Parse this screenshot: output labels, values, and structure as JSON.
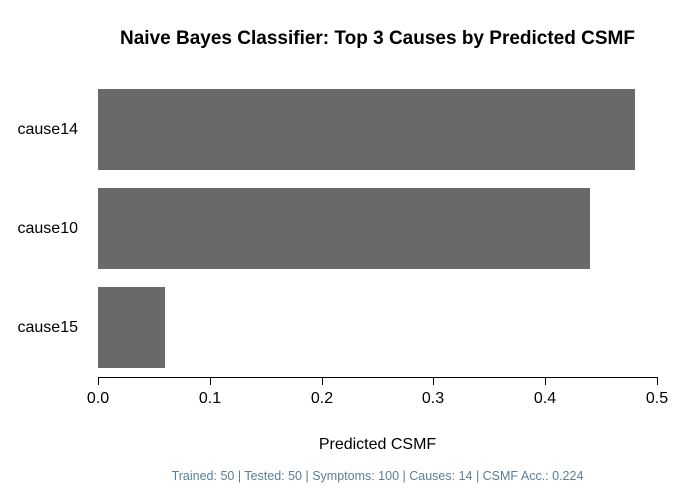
{
  "title": "Naive Bayes Classifier: Top 3 Causes by Predicted CSMF",
  "footer": "Trained: 50 | Tested: 50 | Symptoms: 100 | Causes: 14 | CSMF Acc.: 0.224",
  "colors": {
    "bar": "#696969",
    "axis": "#000000",
    "title_text": "#000000",
    "footer_text": "#5b7e96",
    "background": "#ffffff"
  },
  "chart_data": {
    "type": "bar",
    "orientation": "horizontal",
    "title": "Naive Bayes Classifier: Top 3 Causes by Predicted CSMF",
    "categories": [
      "cause14",
      "cause10",
      "cause15"
    ],
    "values": [
      0.48,
      0.44,
      0.06
    ],
    "xlabel": "Predicted CSMF",
    "ylabel": "",
    "xlim": [
      0,
      0.5
    ],
    "x_tick_labels": [
      "0.0",
      "0.1",
      "0.2",
      "0.3",
      "0.4",
      "0.5"
    ],
    "grid": false,
    "legend": false,
    "annotation": "Trained: 50 | Tested: 50 | Symptoms: 100 | Causes: 14 | CSMF Acc.: 0.224"
  }
}
